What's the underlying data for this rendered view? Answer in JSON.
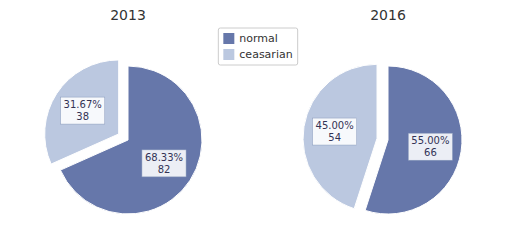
{
  "chart_data": [
    {
      "type": "pie",
      "title": "2013",
      "categories": [
        "normal",
        "ceasarian"
      ],
      "values": [
        68.33,
        31.67
      ],
      "value_labels": [
        "68.33%\n82",
        "31.67%\n38"
      ],
      "colors": [
        "#6677aa",
        "#bbc8e0"
      ],
      "data_labels": true,
      "legend": "top"
    },
    {
      "type": "pie",
      "title": "2016",
      "categories": [
        "normal",
        "ceasarian"
      ],
      "values": [
        55.0,
        45.0
      ],
      "value_labels": [
        "55.00%\n66",
        "45.00%\n54"
      ],
      "colors": [
        "#6677aa",
        "#bbc8e0"
      ],
      "data_labels": true,
      "legend": "top"
    }
  ]
}
